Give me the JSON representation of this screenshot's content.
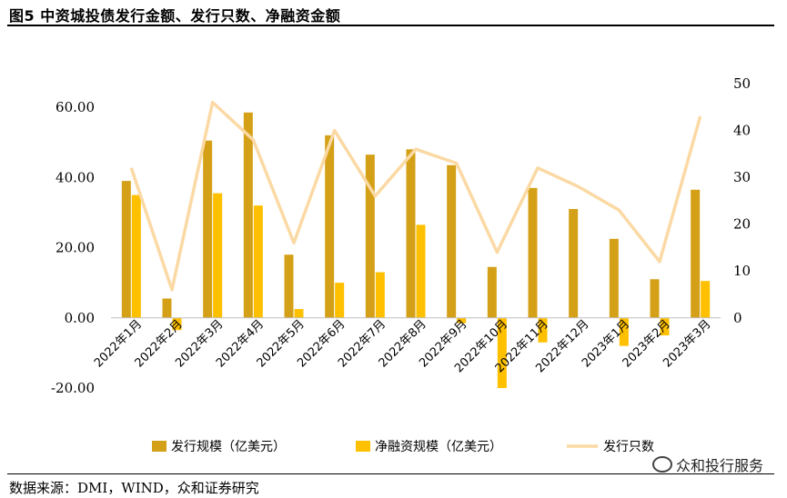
{
  "title": "图5 中资城投债发行金额、发行只数、净融资金额",
  "source": "数据来源：DMI，WIND，众和证券研究",
  "watermark": "众和投行服务",
  "colors": {
    "issuance_amount": "#D4A017",
    "net_financing": "#FFC000",
    "issue_count": "#FBD9A4"
  },
  "chart_data": {
    "type": "bar",
    "categories": [
      "2022年1月",
      "2022年2月",
      "2022年3月",
      "2022年4月",
      "2022年5月",
      "2022年6月",
      "2022年7月",
      "2022年8月",
      "2022年9月",
      "2022年10月",
      "2022年11月",
      "2022年12月",
      "2023年1月",
      "2023年2月",
      "2023年3月"
    ],
    "series": [
      {
        "name": "发行规模（亿美元）",
        "type": "bar",
        "axis": "left",
        "values": [
          39,
          5.5,
          50.5,
          58.5,
          18,
          52,
          46.5,
          48,
          43.5,
          14.5,
          37,
          31,
          22.5,
          11,
          36.5
        ]
      },
      {
        "name": "净融资规模（亿美元）",
        "type": "bar",
        "axis": "left",
        "values": [
          35,
          -3.5,
          35.5,
          32,
          2.5,
          10,
          13,
          26.5,
          -1.5,
          -20,
          -7,
          0,
          -8,
          -5,
          10.5
        ]
      },
      {
        "name": "发行只数",
        "type": "line",
        "axis": "right",
        "values": [
          32,
          6,
          46,
          38,
          16,
          40,
          26,
          36,
          33,
          14,
          32,
          28,
          23,
          12,
          43
        ]
      }
    ],
    "left_axis": {
      "ticks": [
        "60.00",
        "40.00",
        "20.00",
        "0.00",
        "-20.00"
      ],
      "ylim": [
        -20,
        60
      ]
    },
    "right_axis": {
      "ticks": [
        "50",
        "40",
        "30",
        "20",
        "10",
        "0"
      ],
      "ylim": [
        0,
        50
      ]
    },
    "legend_position": "bottom"
  }
}
